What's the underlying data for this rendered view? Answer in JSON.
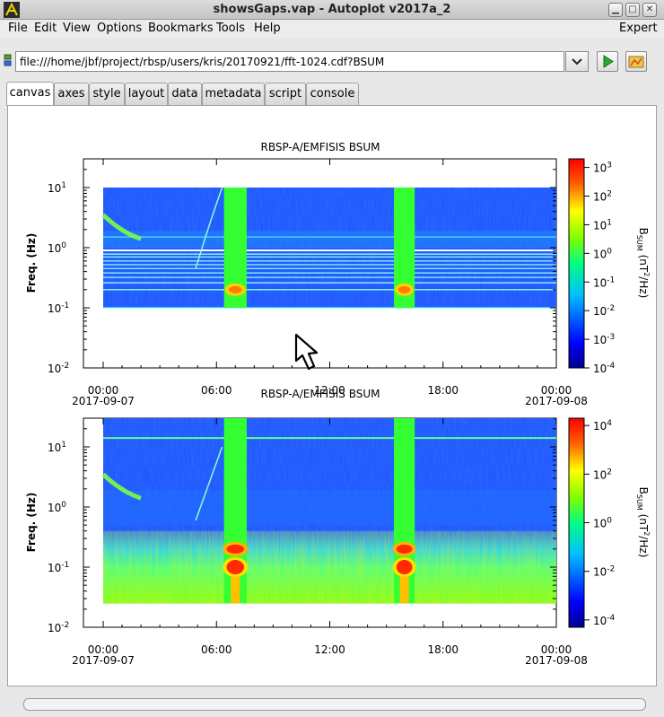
{
  "window": {
    "title": "showsGaps.vap - Autoplot v2017a_2"
  },
  "menu": {
    "items": [
      "File",
      "Edit",
      "View",
      "Options",
      "Bookmarks",
      "Tools",
      "Help"
    ],
    "expert": "Expert"
  },
  "url": {
    "value": "file:///home/jbf/project/rbsp/users/kris/20170921/fft-1024.cdf?BSUM"
  },
  "tabs": [
    "canvas",
    "axes",
    "style",
    "layout",
    "data",
    "metadata",
    "script",
    "console"
  ],
  "active_tab": "canvas",
  "colors": {
    "background_field": "#1f50ff",
    "gap_green": "#33ff33",
    "hot_red": "#ff2a00",
    "axis": "#000000"
  },
  "chart_data": [
    {
      "type": "heatmap",
      "title": "RBSP-A/EMFISIS BSUM",
      "ylabel": "Freq. (Hz)",
      "y_scale": "log",
      "ylim": [
        0.01,
        30
      ],
      "y_ticks": [
        "10^-2",
        "10^-1",
        "10^0",
        "10^1"
      ],
      "x_ticks": [
        "00:00",
        "06:00",
        "12:00",
        "18:00",
        "00:00"
      ],
      "x_dates": [
        "2017-09-07",
        "2017-09-08"
      ],
      "x_range_hours": [
        0,
        24
      ],
      "colorbar": {
        "label": "BSUM (nT^2/Hz)",
        "scale": "log",
        "range": [
          0.0001,
          2000
        ],
        "ticks": [
          "10^-4",
          "10^-3",
          "10^-2",
          "10^-1",
          "10^0",
          "10^1",
          "10^2",
          "10^3"
        ]
      },
      "data_freq_range_hz": [
        0.1,
        10
      ],
      "gap_intervals_hours": [
        [
          6.4,
          7.6
        ],
        [
          15.4,
          16.5
        ]
      ]
    },
    {
      "type": "heatmap",
      "title": "RBSP-A/EMFISIS BSUM",
      "ylabel": "Freq. (Hz)",
      "y_scale": "log",
      "ylim": [
        0.01,
        30
      ],
      "y_ticks": [
        "10^-2",
        "10^-1",
        "10^0",
        "10^1"
      ],
      "x_ticks": [
        "00:00",
        "06:00",
        "12:00",
        "18:00",
        "00:00"
      ],
      "x_dates": [
        "2017-09-07",
        "2017-09-08"
      ],
      "x_range_hours": [
        0,
        24
      ],
      "colorbar": {
        "label": "BSUM (nT^2/Hz)",
        "scale": "log",
        "range": [
          5e-05,
          20000
        ],
        "ticks": [
          "10^-4",
          "10^-2",
          "10^0",
          "10^2",
          "10^4"
        ]
      },
      "data_freq_range_hz": [
        0.025,
        30
      ],
      "gap_intervals_hours": [
        [
          6.4,
          7.6
        ],
        [
          15.4,
          16.5
        ]
      ]
    }
  ]
}
